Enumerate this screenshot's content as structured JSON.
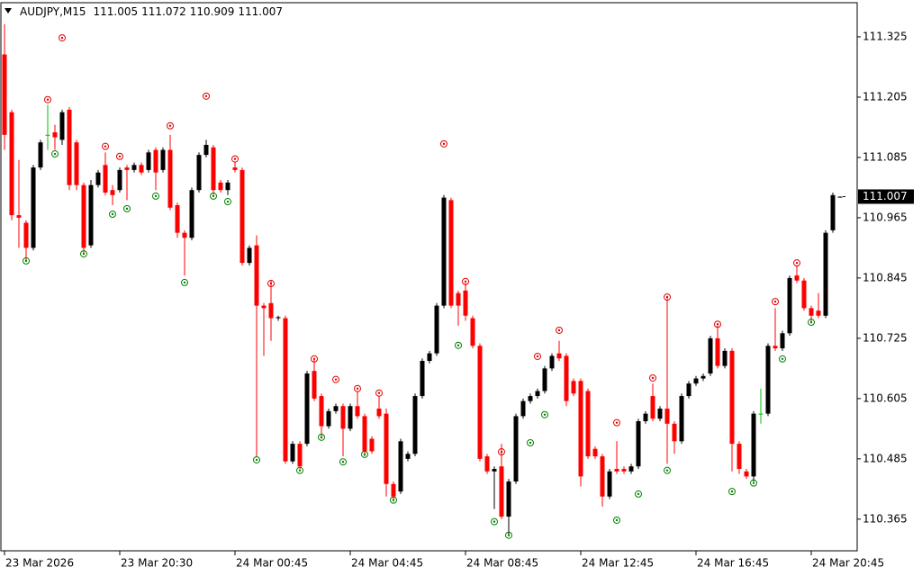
{
  "chart_data": {
    "type": "candlestick",
    "symbol": "AUDJPY,M15",
    "header_values": [
      111.005,
      111.072,
      110.909,
      111.007
    ],
    "bull_color": "#000000",
    "bear_color": "#ff0000",
    "doji_color": "#00c000",
    "fractal_up_color": "#e00000",
    "fractal_down_color": "#008000",
    "xlim": [
      -0.5,
      118.375
    ],
    "ylim": [
      110.302,
      111.393
    ],
    "yticks": [
      111.325,
      111.205,
      111.085,
      110.965,
      110.845,
      110.725,
      110.605,
      110.485,
      110.365
    ],
    "xticks": [
      {
        "value": 0,
        "label": "23 Mar 2026"
      },
      {
        "value": 16,
        "label": "23 Mar 20:30"
      },
      {
        "value": 32,
        "label": "24 Mar 00:45"
      },
      {
        "value": 48,
        "label": "24 Mar 04:45"
      },
      {
        "value": 64,
        "label": "24 Mar 08:45"
      },
      {
        "value": 80,
        "label": "24 Mar 12:45"
      },
      {
        "value": 96,
        "label": "24 Mar 16:45"
      },
      {
        "value": 112,
        "label": "24 Mar 20:45"
      }
    ],
    "current_price": 111.007,
    "ohlc": [
      [
        111.29,
        111.35,
        111.1,
        111.13
      ],
      [
        111.175,
        111.18,
        110.96,
        110.97
      ],
      [
        110.97,
        111.08,
        110.905,
        110.965
      ],
      [
        110.955,
        110.96,
        110.88,
        110.905
      ],
      [
        110.905,
        111.07,
        110.9,
        111.065
      ],
      [
        111.065,
        111.12,
        111.06,
        111.115
      ],
      [
        111.13,
        111.19,
        111.1,
        111.13
      ],
      [
        111.135,
        111.15,
        111.1,
        111.125
      ],
      [
        111.12,
        111.18,
        111.11,
        111.175
      ],
      [
        111.18,
        111.185,
        111.02,
        111.03
      ],
      [
        111.115,
        111.12,
        111.02,
        111.03
      ],
      [
        111.03,
        111.035,
        110.895,
        110.905
      ],
      [
        110.91,
        111.04,
        110.905,
        111.03
      ],
      [
        111.03,
        111.06,
        111.025,
        111.055
      ],
      [
        111.07,
        111.095,
        111.01,
        111.015
      ],
      [
        111.02,
        111.03,
        110.99,
        111.01
      ],
      [
        111.02,
        111.065,
        111.015,
        111.06
      ],
      [
        111.065,
        111.07,
        111.0,
        111.06
      ],
      [
        111.06,
        111.075,
        111.055,
        111.07
      ],
      [
        111.07,
        111.075,
        111.05,
        111.055
      ],
      [
        111.06,
        111.1,
        111.055,
        111.095
      ],
      [
        111.1,
        111.105,
        111.02,
        111.055
      ],
      [
        111.06,
        111.105,
        111.055,
        111.1
      ],
      [
        111.1,
        111.13,
        110.98,
        110.985
      ],
      [
        110.99,
        110.995,
        110.925,
        110.935
      ],
      [
        110.935,
        110.94,
        110.85,
        110.925
      ],
      [
        110.925,
        111.025,
        110.92,
        111.02
      ],
      [
        111.02,
        111.095,
        111.015,
        111.09
      ],
      [
        111.09,
        111.12,
        111.085,
        111.11
      ],
      [
        111.105,
        111.11,
        111.01,
        111.02
      ],
      [
        111.035,
        111.04,
        111.015,
        111.02
      ],
      [
        111.02,
        111.04,
        111.01,
        111.035
      ],
      [
        111.065,
        111.075,
        111.055,
        111.06
      ],
      [
        111.06,
        111.065,
        110.87,
        110.875
      ],
      [
        110.875,
        110.91,
        110.87,
        110.905
      ],
      [
        110.91,
        110.93,
        110.49,
        110.79
      ],
      [
        110.79,
        110.795,
        110.69,
        110.785
      ],
      [
        110.795,
        110.84,
        110.72,
        110.765
      ],
      [
        110.765,
        110.77,
        110.76,
        110.767
      ],
      [
        110.765,
        110.77,
        110.475,
        110.48
      ],
      [
        110.48,
        110.52,
        110.475,
        110.515
      ],
      [
        110.515,
        110.52,
        110.465,
        110.47
      ],
      [
        110.515,
        110.66,
        110.51,
        110.655
      ],
      [
        110.66,
        110.685,
        110.6,
        110.605
      ],
      [
        110.61,
        110.615,
        110.525,
        110.55
      ],
      [
        110.55,
        110.585,
        110.545,
        110.58
      ],
      [
        110.58,
        110.595,
        110.575,
        110.59
      ],
      [
        110.59,
        110.595,
        110.49,
        110.545
      ],
      [
        110.545,
        110.595,
        110.54,
        110.59
      ],
      [
        110.59,
        110.62,
        110.565,
        110.57
      ],
      [
        110.57,
        110.575,
        110.49,
        110.5
      ],
      [
        110.525,
        110.53,
        110.495,
        110.5
      ],
      [
        110.585,
        110.61,
        110.565,
        110.57
      ],
      [
        110.575,
        110.585,
        110.41,
        110.435
      ],
      [
        110.435,
        110.44,
        110.4,
        110.41
      ],
      [
        110.42,
        110.525,
        110.415,
        110.52
      ],
      [
        110.485,
        110.5,
        110.48,
        110.495
      ],
      [
        110.495,
        110.615,
        110.49,
        110.61
      ],
      [
        110.61,
        110.685,
        110.605,
        110.68
      ],
      [
        110.68,
        110.7,
        110.675,
        110.695
      ],
      [
        110.695,
        110.795,
        110.69,
        110.79
      ],
      [
        110.79,
        111.01,
        110.785,
        111.005
      ],
      [
        111.0,
        111.005,
        110.785,
        110.79
      ],
      [
        110.815,
        110.82,
        110.75,
        110.79
      ],
      [
        110.82,
        110.835,
        110.76,
        110.77
      ],
      [
        110.765,
        110.77,
        110.705,
        110.71
      ],
      [
        110.71,
        110.715,
        110.48,
        110.485
      ],
      [
        110.49,
        110.495,
        110.455,
        110.46
      ],
      [
        110.46,
        110.47,
        110.385,
        110.465
      ],
      [
        110.47,
        110.515,
        110.365,
        110.37
      ],
      [
        110.37,
        110.445,
        110.335,
        110.44
      ],
      [
        110.44,
        110.575,
        110.435,
        110.57
      ],
      [
        110.57,
        110.605,
        110.565,
        110.6
      ],
      [
        110.6,
        110.615,
        110.595,
        110.61
      ],
      [
        110.61,
        110.625,
        110.605,
        110.62
      ],
      [
        110.62,
        110.67,
        110.615,
        110.665
      ],
      [
        110.665,
        110.695,
        110.66,
        110.69
      ],
      [
        110.695,
        110.72,
        110.68,
        110.685
      ],
      [
        110.69,
        110.695,
        110.59,
        110.6
      ],
      [
        110.64,
        110.645,
        110.61,
        110.615
      ],
      [
        110.64,
        110.645,
        110.43,
        110.45
      ],
      [
        110.62,
        110.625,
        110.485,
        110.49
      ],
      [
        110.505,
        110.51,
        110.485,
        110.49
      ],
      [
        110.49,
        110.495,
        110.39,
        110.41
      ],
      [
        110.41,
        110.465,
        110.405,
        110.46
      ],
      [
        110.465,
        110.52,
        110.455,
        110.46
      ],
      [
        110.465,
        110.47,
        110.455,
        110.46
      ],
      [
        110.46,
        110.475,
        110.455,
        110.47
      ],
      [
        110.47,
        110.565,
        110.465,
        110.56
      ],
      [
        110.56,
        110.58,
        110.555,
        110.575
      ],
      [
        110.61,
        110.635,
        110.56,
        110.565
      ],
      [
        110.565,
        110.59,
        110.56,
        110.585
      ],
      [
        110.585,
        110.805,
        110.475,
        110.555
      ],
      [
        110.555,
        110.56,
        110.495,
        110.52
      ],
      [
        110.52,
        110.615,
        110.515,
        110.61
      ],
      [
        110.61,
        110.64,
        110.605,
        110.635
      ],
      [
        110.635,
        110.65,
        110.63,
        110.645
      ],
      [
        110.645,
        110.655,
        110.64,
        110.65
      ],
      [
        110.655,
        110.73,
        110.65,
        110.725
      ],
      [
        110.725,
        110.75,
        110.665,
        110.67
      ],
      [
        110.67,
        110.705,
        110.665,
        110.7
      ],
      [
        110.7,
        110.705,
        110.46,
        110.515
      ],
      [
        110.515,
        110.52,
        110.455,
        110.465
      ],
      [
        110.46,
        110.465,
        110.445,
        110.45
      ],
      [
        110.45,
        110.58,
        110.44,
        110.575
      ],
      [
        110.575,
        110.625,
        110.555,
        110.575
      ],
      [
        110.575,
        110.715,
        110.57,
        110.71
      ],
      [
        110.71,
        110.785,
        110.7,
        110.705
      ],
      [
        110.705,
        110.74,
        110.7,
        110.735
      ],
      [
        110.735,
        110.85,
        110.73,
        110.845
      ],
      [
        110.85,
        110.87,
        110.835,
        110.84
      ],
      [
        110.84,
        110.845,
        110.78,
        110.785
      ],
      [
        110.785,
        110.79,
        110.755,
        110.77
      ],
      [
        110.78,
        110.815,
        110.765,
        110.77
      ],
      [
        110.77,
        110.94,
        110.765,
        110.935
      ],
      [
        110.94,
        111.015,
        110.935,
        111.01
      ],
      [
        111.005,
        111.007,
        111.005,
        111.007
      ]
    ],
    "fractals_up": [
      [
        6,
        111.2
      ],
      [
        8,
        111.323
      ],
      [
        14,
        111.107
      ],
      [
        16,
        111.087
      ],
      [
        23,
        111.148
      ],
      [
        28,
        111.207
      ],
      [
        32,
        111.082
      ],
      [
        37,
        110.834
      ],
      [
        43,
        110.684
      ],
      [
        46,
        110.643
      ],
      [
        49,
        110.625
      ],
      [
        52,
        110.616
      ],
      [
        61,
        111.112
      ],
      [
        64,
        110.838
      ],
      [
        69,
        110.499
      ],
      [
        74,
        110.689
      ],
      [
        77,
        110.741
      ],
      [
        85,
        110.557
      ],
      [
        90,
        110.646
      ],
      [
        92,
        110.807
      ],
      [
        99,
        110.753
      ],
      [
        107,
        110.798
      ],
      [
        110,
        110.875
      ]
    ],
    "fractals_down": [
      [
        3,
        110.879
      ],
      [
        7,
        111.092
      ],
      [
        11,
        110.893
      ],
      [
        15,
        110.972
      ],
      [
        17,
        110.983
      ],
      [
        21,
        111.008
      ],
      [
        25,
        110.836
      ],
      [
        29,
        111.008
      ],
      [
        31,
        110.997
      ],
      [
        35,
        110.483
      ],
      [
        41,
        110.462
      ],
      [
        44,
        110.528
      ],
      [
        47,
        110.479
      ],
      [
        50,
        110.494
      ],
      [
        54,
        110.403
      ],
      [
        63,
        110.711
      ],
      [
        68,
        110.36
      ],
      [
        70,
        110.333
      ],
      [
        73,
        110.517
      ],
      [
        75,
        110.573
      ],
      [
        85,
        110.363
      ],
      [
        88,
        110.415
      ],
      [
        92,
        110.462
      ],
      [
        101,
        110.42
      ],
      [
        104,
        110.437
      ],
      [
        108,
        110.684
      ],
      [
        112,
        110.757
      ]
    ]
  }
}
